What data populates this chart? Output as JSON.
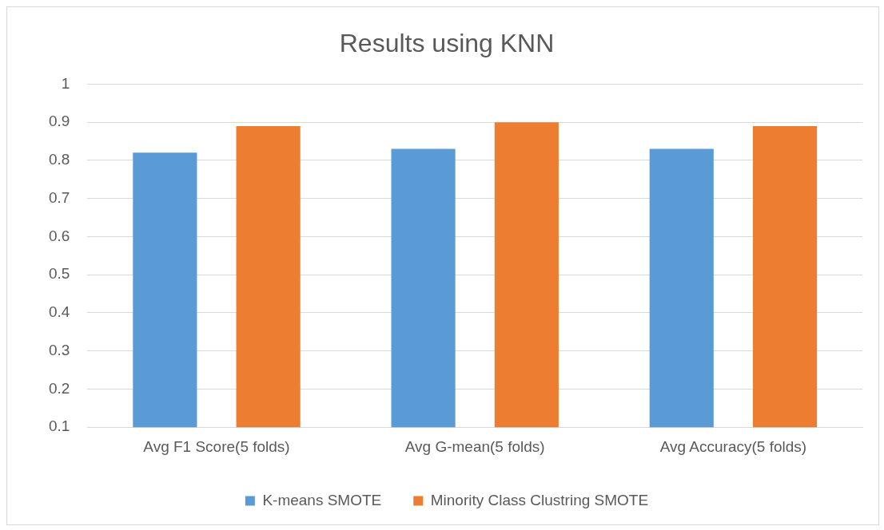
{
  "chart_data": {
    "type": "bar",
    "title": "Results using KNN",
    "categories": [
      "Avg F1 Score(5 folds)",
      "Avg G-mean(5 folds)",
      "Avg Accuracy(5 folds)"
    ],
    "series": [
      {
        "name": "K-means SMOTE",
        "color": "#5b9bd5",
        "values": [
          0.82,
          0.83,
          0.83
        ]
      },
      {
        "name": "Minority Class Clustring SMOTE",
        "color": "#ed7d31",
        "values": [
          0.89,
          0.9,
          0.89
        ]
      }
    ],
    "ylim": [
      0.1,
      1
    ],
    "yticks": [
      0.1,
      0.2,
      0.3,
      0.4,
      0.5,
      0.6,
      0.7,
      0.8,
      0.9,
      1
    ],
    "grid": "y",
    "legend": "bottom"
  }
}
